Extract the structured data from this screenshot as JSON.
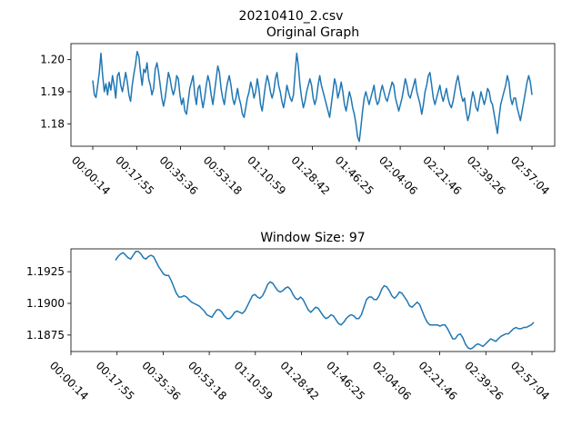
{
  "figure": {
    "suptitle": "20210410_2.csv"
  },
  "chart_data": [
    {
      "type": "line",
      "title": "Original Graph",
      "xlabel": "",
      "ylabel": "",
      "color": "#1f77b4",
      "x_tick_labels": [
        "00:00:14",
        "00:17:55",
        "00:35:36",
        "00:53:18",
        "01:10:59",
        "01:28:42",
        "01:46:25",
        "02:04:06",
        "02:21:46",
        "02:39:26",
        "02:57:04"
      ],
      "y_ticks": [
        "1.18",
        "1.19",
        "1.20"
      ],
      "ylim": [
        1.173,
        1.205
      ],
      "grid": false,
      "y": [
        1.1935,
        1.189,
        1.1882,
        1.192,
        1.196,
        1.202,
        1.195,
        1.19,
        1.1925,
        1.189,
        1.193,
        1.1905,
        1.195,
        1.192,
        1.188,
        1.195,
        1.196,
        1.192,
        1.19,
        1.193,
        1.196,
        1.193,
        1.189,
        1.187,
        1.192,
        1.1955,
        1.1985,
        1.2025,
        1.201,
        1.196,
        1.192,
        1.197,
        1.196,
        1.199,
        1.194,
        1.192,
        1.189,
        1.191,
        1.197,
        1.199,
        1.196,
        1.192,
        1.188,
        1.1855,
        1.188,
        1.192,
        1.196,
        1.194,
        1.191,
        1.189,
        1.191,
        1.195,
        1.194,
        1.189,
        1.186,
        1.188,
        1.184,
        1.183,
        1.187,
        1.191,
        1.193,
        1.195,
        1.189,
        1.186,
        1.191,
        1.192,
        1.188,
        1.185,
        1.188,
        1.192,
        1.195,
        1.193,
        1.189,
        1.186,
        1.19,
        1.194,
        1.198,
        1.196,
        1.191,
        1.188,
        1.186,
        1.19,
        1.193,
        1.195,
        1.192,
        1.188,
        1.186,
        1.188,
        1.191,
        1.188,
        1.186,
        1.183,
        1.182,
        1.185,
        1.188,
        1.19,
        1.193,
        1.191,
        1.188,
        1.19,
        1.194,
        1.191,
        1.186,
        1.184,
        1.188,
        1.192,
        1.195,
        1.193,
        1.19,
        1.188,
        1.19,
        1.194,
        1.196,
        1.192,
        1.19,
        1.187,
        1.185,
        1.188,
        1.192,
        1.19,
        1.188,
        1.187,
        1.189,
        1.196,
        1.202,
        1.198,
        1.192,
        1.188,
        1.185,
        1.187,
        1.19,
        1.192,
        1.194,
        1.192,
        1.188,
        1.186,
        1.188,
        1.192,
        1.195,
        1.192,
        1.19,
        1.188,
        1.186,
        1.184,
        1.182,
        1.186,
        1.19,
        1.194,
        1.192,
        1.188,
        1.19,
        1.193,
        1.19,
        1.186,
        1.184,
        1.187,
        1.19,
        1.188,
        1.185,
        1.183,
        1.18,
        1.176,
        1.1745,
        1.179,
        1.184,
        1.188,
        1.19,
        1.188,
        1.186,
        1.188,
        1.19,
        1.192,
        1.188,
        1.186,
        1.187,
        1.19,
        1.192,
        1.19,
        1.188,
        1.187,
        1.189,
        1.191,
        1.193,
        1.192,
        1.188,
        1.186,
        1.184,
        1.186,
        1.188,
        1.191,
        1.194,
        1.192,
        1.189,
        1.188,
        1.19,
        1.192,
        1.194,
        1.19,
        1.188,
        1.186,
        1.183,
        1.186,
        1.19,
        1.192,
        1.195,
        1.196,
        1.192,
        1.188,
        1.186,
        1.188,
        1.19,
        1.192,
        1.189,
        1.187,
        1.189,
        1.191,
        1.188,
        1.186,
        1.185,
        1.187,
        1.19,
        1.193,
        1.195,
        1.192,
        1.189,
        1.187,
        1.188,
        1.184,
        1.181,
        1.183,
        1.187,
        1.19,
        1.188,
        1.185,
        1.184,
        1.187,
        1.19,
        1.188,
        1.186,
        1.188,
        1.191,
        1.19,
        1.187,
        1.186,
        1.183,
        1.18,
        1.177,
        1.182,
        1.186,
        1.188,
        1.19,
        1.192,
        1.195,
        1.193,
        1.188,
        1.186,
        1.188,
        1.188,
        1.185,
        1.183,
        1.181,
        1.184,
        1.187,
        1.19,
        1.193,
        1.195,
        1.193,
        1.189
      ]
    },
    {
      "type": "line",
      "title": "Window Size: 97",
      "xlabel": "",
      "ylabel": "",
      "color": "#1f77b4",
      "x_tick_labels": [
        "00:00:14",
        "00:17:55",
        "00:35:36",
        "00:53:18",
        "01:10:59",
        "01:28:42",
        "01:46:25",
        "02:04:06",
        "02:21:46",
        "02:39:26",
        "02:57:04"
      ],
      "y_ticks": [
        "1.1875",
        "1.1900",
        "1.1925"
      ],
      "ylim": [
        1.1862,
        1.1943
      ],
      "grid": false,
      "x_start_fraction": 0.052,
      "y": [
        1.1934,
        1.1937,
        1.1939,
        1.194,
        1.1938,
        1.1936,
        1.1935,
        1.1938,
        1.1941,
        1.1941,
        1.1939,
        1.1936,
        1.1935,
        1.1937,
        1.1938,
        1.1937,
        1.1933,
        1.1929,
        1.1926,
        1.1923,
        1.1922,
        1.1922,
        1.1918,
        1.1913,
        1.1908,
        1.1905,
        1.1905,
        1.1906,
        1.1905,
        1.1903,
        1.1901,
        1.19,
        1.1899,
        1.1898,
        1.1896,
        1.1894,
        1.1891,
        1.189,
        1.1889,
        1.1892,
        1.1895,
        1.1895,
        1.1893,
        1.189,
        1.1888,
        1.1888,
        1.189,
        1.1893,
        1.1894,
        1.1893,
        1.1892,
        1.1894,
        1.1898,
        1.1902,
        1.1906,
        1.1907,
        1.1905,
        1.1904,
        1.1906,
        1.191,
        1.1915,
        1.1917,
        1.1916,
        1.1913,
        1.191,
        1.1909,
        1.191,
        1.1912,
        1.1913,
        1.1911,
        1.1907,
        1.1904,
        1.1903,
        1.1905,
        1.1903,
        1.1899,
        1.1895,
        1.1893,
        1.1895,
        1.1897,
        1.1896,
        1.1893,
        1.189,
        1.1888,
        1.1889,
        1.1891,
        1.189,
        1.1887,
        1.1884,
        1.1883,
        1.1885,
        1.1888,
        1.189,
        1.1891,
        1.189,
        1.1888,
        1.1888,
        1.1891,
        1.1897,
        1.1903,
        1.1905,
        1.1905,
        1.1903,
        1.1903,
        1.1906,
        1.1911,
        1.1914,
        1.1913,
        1.191,
        1.1906,
        1.1904,
        1.1906,
        1.1909,
        1.1908,
        1.1905,
        1.1902,
        1.1898,
        1.1897,
        1.1899,
        1.1901,
        1.1899,
        1.1894,
        1.1889,
        1.1885,
        1.1883,
        1.1883,
        1.1883,
        1.1883,
        1.1882,
        1.1883,
        1.1883,
        1.188,
        1.1876,
        1.1872,
        1.1872,
        1.1875,
        1.1876,
        1.1873,
        1.1868,
        1.1865,
        1.1864,
        1.1865,
        1.1867,
        1.1868,
        1.1867,
        1.1866,
        1.1868,
        1.187,
        1.1872,
        1.1871,
        1.187,
        1.1872,
        1.1874,
        1.1875,
        1.1876,
        1.1876,
        1.1878,
        1.188,
        1.1881,
        1.188,
        1.188,
        1.1881,
        1.1881,
        1.1882,
        1.1883,
        1.1885
      ]
    }
  ]
}
